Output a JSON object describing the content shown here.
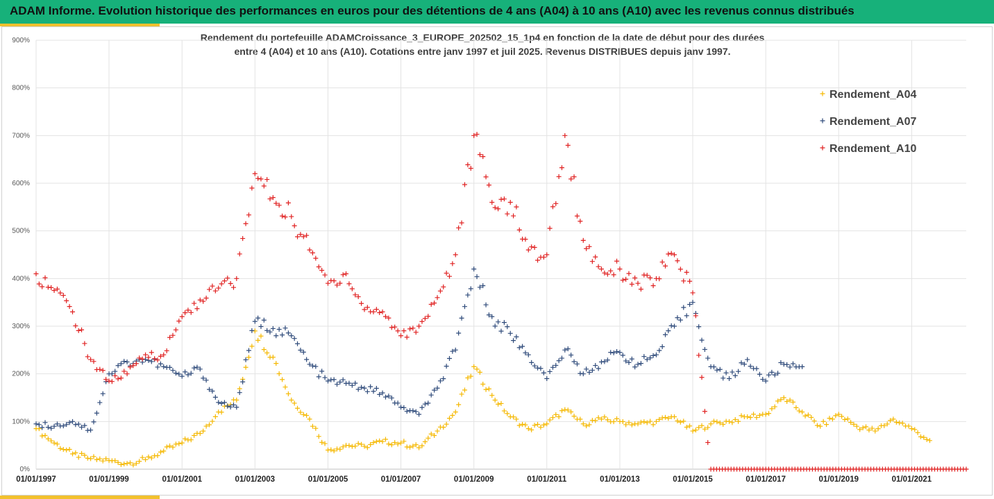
{
  "header": {
    "title": "ADAM Informe. Evolution historique des performances en euros pour des détentions de 4 ans (A04) à 10 ans (A10) avec les revenus connus distribués"
  },
  "colors": {
    "header_bg": "#17b17a",
    "accent": "#f2c12e"
  },
  "chart_data": {
    "type": "scatter",
    "title_line1": "Rendement du portefeuille ADAMCroissance_3_EUROPE_202502_15_1p4  en fonction de la date de début pour des durées",
    "title_line2": "entre 4 (A04) et 10 ans (A10). Cotations entre janv 1997 et juil 2025. Revenus DISTRIBUES depuis janv 1997.",
    "xlabel": "",
    "ylabel": "",
    "xlim": [
      "1997-01-01",
      "2022-07-01"
    ],
    "ylim": [
      0,
      900
    ],
    "y_ticks": [
      "0%",
      "100%",
      "200%",
      "300%",
      "400%",
      "500%",
      "600%",
      "700%",
      "800%",
      "900%"
    ],
    "x_ticks": [
      "01/01/1997",
      "01/01/1999",
      "01/01/2001",
      "01/01/2003",
      "01/01/2005",
      "01/01/2007",
      "01/01/2009",
      "01/01/2011",
      "01/01/2013",
      "01/01/2015",
      "01/01/2017",
      "01/01/2019",
      "01/01/2021"
    ],
    "grid": true,
    "legend_position": "top-right",
    "marker": "+",
    "series": [
      {
        "name": "Rendement_A04",
        "color": "#f5b800",
        "points": [
          [
            "1997-01-01",
            85
          ],
          [
            "1997-07-01",
            55
          ],
          [
            "1998-01-01",
            32
          ],
          [
            "1998-07-01",
            22
          ],
          [
            "1999-01-01",
            18
          ],
          [
            "1999-07-01",
            12
          ],
          [
            "2000-01-01",
            20
          ],
          [
            "2000-07-01",
            38
          ],
          [
            "2001-01-01",
            55
          ],
          [
            "2001-07-01",
            75
          ],
          [
            "2002-01-01",
            120
          ],
          [
            "2002-07-01",
            145
          ],
          [
            "2003-01-01",
            290
          ],
          [
            "2003-07-01",
            235
          ],
          [
            "2004-01-01",
            145
          ],
          [
            "2004-07-01",
            105
          ],
          [
            "2005-01-01",
            40
          ],
          [
            "2005-07-01",
            50
          ],
          [
            "2006-01-01",
            48
          ],
          [
            "2006-07-01",
            58
          ],
          [
            "2007-01-01",
            55
          ],
          [
            "2007-07-01",
            45
          ],
          [
            "2008-01-01",
            80
          ],
          [
            "2008-07-01",
            120
          ],
          [
            "2009-01-01",
            215
          ],
          [
            "2009-07-01",
            155
          ],
          [
            "2010-01-01",
            110
          ],
          [
            "2010-07-01",
            85
          ],
          [
            "2011-01-01",
            95
          ],
          [
            "2011-07-01",
            125
          ],
          [
            "2012-01-01",
            95
          ],
          [
            "2012-07-01",
            105
          ],
          [
            "2013-01-01",
            100
          ],
          [
            "2013-07-01",
            95
          ],
          [
            "2014-01-01",
            100
          ],
          [
            "2014-07-01",
            110
          ],
          [
            "2015-01-01",
            80
          ],
          [
            "2015-07-01",
            95
          ],
          [
            "2016-01-01",
            100
          ],
          [
            "2016-07-01",
            110
          ],
          [
            "2017-01-01",
            115
          ],
          [
            "2017-07-01",
            150
          ],
          [
            "2018-01-01",
            120
          ],
          [
            "2018-07-01",
            90
          ],
          [
            "2019-01-01",
            115
          ],
          [
            "2019-07-01",
            90
          ],
          [
            "2020-01-01",
            80
          ],
          [
            "2020-07-01",
            105
          ],
          [
            "2021-01-01",
            85
          ],
          [
            "2021-07-01",
            60
          ]
        ]
      },
      {
        "name": "Rendement_A07",
        "color": "#2e4a7a",
        "points": [
          [
            "1997-01-01",
            95
          ],
          [
            "1997-07-01",
            90
          ],
          [
            "1998-01-01",
            100
          ],
          [
            "1998-07-01",
            82
          ],
          [
            "1999-01-01",
            200
          ],
          [
            "1999-07-01",
            225
          ],
          [
            "2000-01-01",
            230
          ],
          [
            "2000-07-01",
            215
          ],
          [
            "2001-01-01",
            195
          ],
          [
            "2001-07-01",
            210
          ],
          [
            "2002-01-01",
            140
          ],
          [
            "2002-07-01",
            130
          ],
          [
            "2003-01-01",
            310
          ],
          [
            "2003-07-01",
            295
          ],
          [
            "2004-01-01",
            280
          ],
          [
            "2004-07-01",
            220
          ],
          [
            "2005-01-01",
            185
          ],
          [
            "2005-07-01",
            180
          ],
          [
            "2006-01-01",
            170
          ],
          [
            "2006-07-01",
            160
          ],
          [
            "2007-01-01",
            130
          ],
          [
            "2007-07-01",
            115
          ],
          [
            "2008-01-01",
            170
          ],
          [
            "2008-07-01",
            250
          ],
          [
            "2009-01-01",
            420
          ],
          [
            "2009-07-01",
            320
          ],
          [
            "2010-01-01",
            285
          ],
          [
            "2010-07-01",
            240
          ],
          [
            "2011-01-01",
            190
          ],
          [
            "2011-07-01",
            250
          ],
          [
            "2012-01-01",
            200
          ],
          [
            "2012-07-01",
            225
          ],
          [
            "2013-01-01",
            245
          ],
          [
            "2013-07-01",
            220
          ],
          [
            "2014-01-01",
            240
          ],
          [
            "2014-07-01",
            300
          ],
          [
            "2015-01-01",
            350
          ],
          [
            "2015-07-01",
            215
          ],
          [
            "2016-01-01",
            190
          ],
          [
            "2016-07-01",
            230
          ],
          [
            "2017-01-01",
            185
          ],
          [
            "2017-07-01",
            220
          ],
          [
            "2018-01-01",
            215
          ]
        ]
      },
      {
        "name": "Rendement_A10",
        "color": "#e02020",
        "points": [
          [
            "1997-01-01",
            410
          ],
          [
            "1997-07-01",
            375
          ],
          [
            "1998-01-01",
            330
          ],
          [
            "1998-07-01",
            230
          ],
          [
            "1999-01-01",
            185
          ],
          [
            "1999-07-01",
            200
          ],
          [
            "2000-01-01",
            240
          ],
          [
            "2000-07-01",
            240
          ],
          [
            "2001-01-01",
            320
          ],
          [
            "2001-07-01",
            355
          ],
          [
            "2002-01-01",
            380
          ],
          [
            "2002-07-01",
            400
          ],
          [
            "2003-01-01",
            620
          ],
          [
            "2003-07-01",
            570
          ],
          [
            "2004-01-01",
            530
          ],
          [
            "2004-07-01",
            460
          ],
          [
            "2005-01-01",
            390
          ],
          [
            "2005-07-01",
            410
          ],
          [
            "2006-01-01",
            335
          ],
          [
            "2006-07-01",
            330
          ],
          [
            "2007-01-01",
            280
          ],
          [
            "2007-07-01",
            300
          ],
          [
            "2008-01-01",
            360
          ],
          [
            "2008-07-01",
            450
          ],
          [
            "2009-01-01",
            700
          ],
          [
            "2009-07-01",
            560
          ],
          [
            "2010-01-01",
            560
          ],
          [
            "2010-07-01",
            460
          ],
          [
            "2011-01-01",
            450
          ],
          [
            "2011-07-01",
            700
          ],
          [
            "2012-01-01",
            480
          ],
          [
            "2012-07-01",
            420
          ],
          [
            "2013-01-01",
            420
          ],
          [
            "2013-07-01",
            390
          ],
          [
            "2014-01-01",
            400
          ],
          [
            "2014-07-01",
            450
          ],
          [
            "2015-01-01",
            370
          ],
          [
            "2015-07-01",
            0
          ],
          [
            "2017-01-01",
            0
          ],
          [
            "2019-01-01",
            0
          ],
          [
            "2021-01-01",
            0
          ],
          [
            "2022-07-01",
            0
          ]
        ]
      }
    ]
  }
}
